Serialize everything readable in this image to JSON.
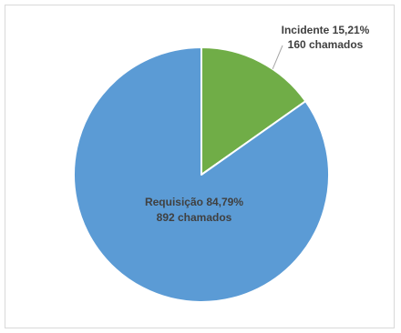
{
  "chart_data": {
    "type": "pie",
    "title": "",
    "categories": [
      "Incidente",
      "Requisição"
    ],
    "values": [
      160,
      892
    ],
    "percent_labels": [
      "15,21%",
      "84,79%"
    ],
    "count_labels": [
      "160 chamados",
      "892 chamados"
    ],
    "colors": [
      "#70ad47",
      "#5b9bd5"
    ],
    "start_angle_deg": 0,
    "direction": "clockwise",
    "legend": "none",
    "labels": {
      "incidente_line1": "Incidente 15,21%",
      "incidente_line2": "160 chamados",
      "requisicao_line1": "Requisição 84,79%",
      "requisicao_line2": "892 chamados"
    },
    "label_colors": {
      "incidente": "#404040",
      "requisicao": "#404040"
    }
  }
}
